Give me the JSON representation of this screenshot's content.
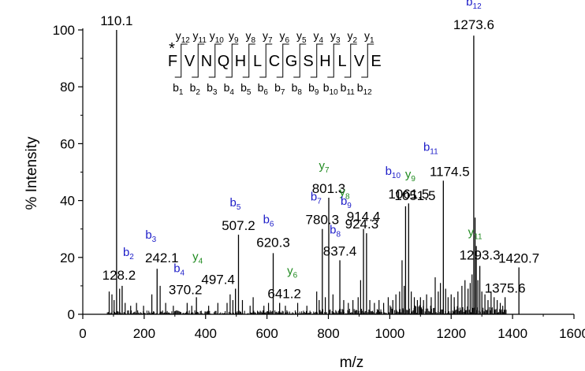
{
  "chart_data": {
    "type": "bar",
    "xlabel": "m/z",
    "ylabel": "% Intensity",
    "xlim": [
      0,
      1600
    ],
    "ylim": [
      0,
      100
    ],
    "x_ticks": [
      0,
      200,
      400,
      600,
      800,
      1000,
      1200,
      1400,
      1600
    ],
    "y_ticks": [
      0,
      20,
      40,
      60,
      80,
      100
    ],
    "colors": {
      "b_ion": "#1c1cc8",
      "y_ion": "#1f8a1f",
      "spectrum": "#000000"
    },
    "peaks": [
      {
        "mz": 110.1,
        "intensity": 100,
        "label": "110.1"
      },
      {
        "mz": 128.2,
        "intensity": 10,
        "label": "128.2",
        "ion_type": "b",
        "ion_index": "2"
      },
      {
        "mz": 242.1,
        "intensity": 16,
        "label": "242.1",
        "ion_type": "b",
        "ion_index": "3"
      },
      {
        "mz": 370.2,
        "intensity": 6,
        "label": "370.2",
        "ion_type": "b",
        "ion_index": "4"
      },
      {
        "mz": 497.4,
        "intensity": 9,
        "label": "497.4",
        "ion_type": "y",
        "ion_index": "4"
      },
      {
        "mz": 507.2,
        "intensity": 28,
        "label": "507.2",
        "ion_type": "b",
        "ion_index": "5"
      },
      {
        "mz": 620.3,
        "intensity": 21.5,
        "label": "620.3",
        "ion_type": "b",
        "ion_index": "6"
      },
      {
        "mz": 641.2,
        "intensity": 4,
        "label": "641.2",
        "ion_type": "y",
        "ion_index": "6"
      },
      {
        "mz": 780.3,
        "intensity": 30,
        "label": "780.3",
        "ion_type": "b",
        "ion_index": "7"
      },
      {
        "mz": 801.3,
        "intensity": 41,
        "label": "801.3",
        "ion_type": "y",
        "ion_index": "7"
      },
      {
        "mz": 837.4,
        "intensity": 19,
        "label": "837.4",
        "ion_type": "b",
        "ion_index": "8"
      },
      {
        "mz": 914.4,
        "intensity": 30,
        "label": "914.4",
        "ion_type": "y",
        "ion_index": "8"
      },
      {
        "mz": 924.3,
        "intensity": 28.5,
        "label": "924.3",
        "ion_type": "b",
        "ion_index": "9"
      },
      {
        "mz": 1051.5,
        "intensity": 38,
        "label": "1051.5",
        "ion_type": "y",
        "ion_index": "9"
      },
      {
        "mz": 1061.5,
        "intensity": 39,
        "label": "1061.5",
        "ion_type": "b",
        "ion_index": "10"
      },
      {
        "mz": 1174.5,
        "intensity": 47,
        "label": "1174.5",
        "ion_type": "b",
        "ion_index": "11"
      },
      {
        "mz": 1273.6,
        "intensity": 98,
        "label": "1273.6",
        "ion_type": "b",
        "ion_index": "12"
      },
      {
        "mz": 1293.3,
        "intensity": 17,
        "label": "1293.3",
        "ion_type": "y",
        "ion_index": "11"
      },
      {
        "mz": 1375.6,
        "intensity": 6,
        "label": "1375.6"
      },
      {
        "mz": 1420.7,
        "intensity": 16.5,
        "label": "1420.7"
      }
    ],
    "minor_peaks": [
      {
        "mz": 86,
        "intensity": 8
      },
      {
        "mz": 95,
        "intensity": 7
      },
      {
        "mz": 102,
        "intensity": 5
      },
      {
        "mz": 120,
        "intensity": 9
      },
      {
        "mz": 138,
        "intensity": 4
      },
      {
        "mz": 156,
        "intensity": 3
      },
      {
        "mz": 175,
        "intensity": 4
      },
      {
        "mz": 198,
        "intensity": 3
      },
      {
        "mz": 225,
        "intensity": 7
      },
      {
        "mz": 252,
        "intensity": 10
      },
      {
        "mz": 270,
        "intensity": 4
      },
      {
        "mz": 295,
        "intensity": 3
      },
      {
        "mz": 340,
        "intensity": 4
      },
      {
        "mz": 355,
        "intensity": 3
      },
      {
        "mz": 410,
        "intensity": 3
      },
      {
        "mz": 440,
        "intensity": 4
      },
      {
        "mz": 470,
        "intensity": 4
      },
      {
        "mz": 480,
        "intensity": 7
      },
      {
        "mz": 489,
        "intensity": 5
      },
      {
        "mz": 520,
        "intensity": 5
      },
      {
        "mz": 545,
        "intensity": 3
      },
      {
        "mz": 555,
        "intensity": 6
      },
      {
        "mz": 590,
        "intensity": 3
      },
      {
        "mz": 605,
        "intensity": 4
      },
      {
        "mz": 660,
        "intensity": 3
      },
      {
        "mz": 700,
        "intensity": 4
      },
      {
        "mz": 730,
        "intensity": 3
      },
      {
        "mz": 762,
        "intensity": 8
      },
      {
        "mz": 770,
        "intensity": 5
      },
      {
        "mz": 790,
        "intensity": 6
      },
      {
        "mz": 815,
        "intensity": 7
      },
      {
        "mz": 850,
        "intensity": 5
      },
      {
        "mz": 865,
        "intensity": 4
      },
      {
        "mz": 880,
        "intensity": 5
      },
      {
        "mz": 897,
        "intensity": 6
      },
      {
        "mz": 905,
        "intensity": 12
      },
      {
        "mz": 935,
        "intensity": 5
      },
      {
        "mz": 950,
        "intensity": 4
      },
      {
        "mz": 965,
        "intensity": 5
      },
      {
        "mz": 980,
        "intensity": 4
      },
      {
        "mz": 995,
        "intensity": 6
      },
      {
        "mz": 1010,
        "intensity": 5
      },
      {
        "mz": 1020,
        "intensity": 7
      },
      {
        "mz": 1032,
        "intensity": 8
      },
      {
        "mz": 1040,
        "intensity": 19
      },
      {
        "mz": 1047,
        "intensity": 10
      },
      {
        "mz": 1070,
        "intensity": 8
      },
      {
        "mz": 1080,
        "intensity": 6
      },
      {
        "mz": 1090,
        "intensity": 5
      },
      {
        "mz": 1100,
        "intensity": 6
      },
      {
        "mz": 1110,
        "intensity": 5
      },
      {
        "mz": 1120,
        "intensity": 7
      },
      {
        "mz": 1135,
        "intensity": 6
      },
      {
        "mz": 1148,
        "intensity": 13
      },
      {
        "mz": 1158,
        "intensity": 8
      },
      {
        "mz": 1165,
        "intensity": 11
      },
      {
        "mz": 1182,
        "intensity": 9
      },
      {
        "mz": 1190,
        "intensity": 6
      },
      {
        "mz": 1200,
        "intensity": 7
      },
      {
        "mz": 1210,
        "intensity": 6
      },
      {
        "mz": 1222,
        "intensity": 8
      },
      {
        "mz": 1235,
        "intensity": 10
      },
      {
        "mz": 1245,
        "intensity": 12
      },
      {
        "mz": 1255,
        "intensity": 9
      },
      {
        "mz": 1262,
        "intensity": 11
      },
      {
        "mz": 1268,
        "intensity": 14
      },
      {
        "mz": 1278,
        "intensity": 34
      },
      {
        "mz": 1282,
        "intensity": 24
      },
      {
        "mz": 1287,
        "intensity": 12
      },
      {
        "mz": 1300,
        "intensity": 8
      },
      {
        "mz": 1310,
        "intensity": 7
      },
      {
        "mz": 1320,
        "intensity": 5
      },
      {
        "mz": 1330,
        "intensity": 8
      },
      {
        "mz": 1340,
        "intensity": 6
      },
      {
        "mz": 1350,
        "intensity": 5
      },
      {
        "mz": 1360,
        "intensity": 4
      },
      {
        "mz": 1368,
        "intensity": 3
      }
    ],
    "sequence": {
      "residues": [
        "F",
        "V",
        "N",
        "Q",
        "H",
        "L",
        "C",
        "G",
        "S",
        "H",
        "L",
        "V",
        "E"
      ],
      "modification_mark": "*",
      "y_labels": [
        "12",
        "11",
        "10",
        "9",
        "8",
        "7",
        "6",
        "5",
        "4",
        "3",
        "2",
        "1"
      ],
      "b_labels": [
        "1",
        "2",
        "3",
        "4",
        "5",
        "6",
        "7",
        "8",
        "9",
        "10",
        "11",
        "12"
      ]
    }
  }
}
